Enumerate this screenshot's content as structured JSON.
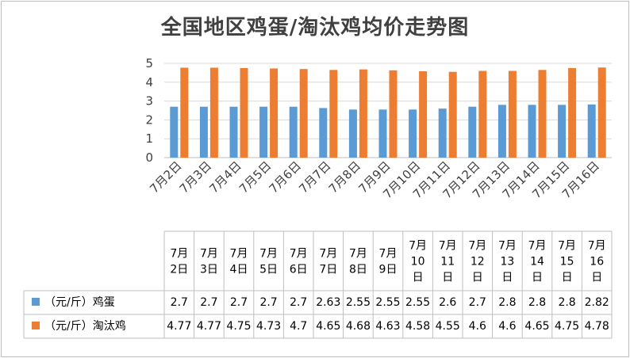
{
  "chart_data": {
    "type": "bar",
    "title": "全国地区鸡蛋/淘汰鸡均价走势图",
    "categories": [
      "7月2日",
      "7月3日",
      "7月4日",
      "7月5日",
      "7月6日",
      "7月7日",
      "7月8日",
      "7月9日",
      "7月10日",
      "7月11日",
      "7月12日",
      "7月13日",
      "7月14日",
      "7月15日",
      "7月16日"
    ],
    "table_headers": [
      [
        "7月",
        "2日"
      ],
      [
        "7月",
        "3日"
      ],
      [
        "7月",
        "4日"
      ],
      [
        "7月",
        "5日"
      ],
      [
        "7月",
        "6日"
      ],
      [
        "7月",
        "7日"
      ],
      [
        "7月",
        "8日"
      ],
      [
        "7月",
        "9日"
      ],
      [
        "7月",
        "10",
        "日"
      ],
      [
        "7月",
        "11",
        "日"
      ],
      [
        "7月",
        "12",
        "日"
      ],
      [
        "7月",
        "13",
        "日"
      ],
      [
        "7月",
        "14",
        "日"
      ],
      [
        "7月",
        "15",
        "日"
      ],
      [
        "7月",
        "16",
        "日"
      ]
    ],
    "series": [
      {
        "name": "（元/斤）鸡蛋",
        "color": "#5B9BD5",
        "values": [
          2.7,
          2.7,
          2.7,
          2.7,
          2.7,
          2.63,
          2.55,
          2.55,
          2.55,
          2.6,
          2.7,
          2.8,
          2.8,
          2.8,
          2.82
        ]
      },
      {
        "name": "（元/斤）淘汰鸡",
        "color": "#ED7D31",
        "values": [
          4.77,
          4.77,
          4.75,
          4.73,
          4.7,
          4.65,
          4.68,
          4.63,
          4.58,
          4.55,
          4.6,
          4.6,
          4.65,
          4.75,
          4.78
        ]
      }
    ],
    "y_ticks": [
      "0",
      "1",
      "2",
      "3",
      "4",
      "5"
    ],
    "ylim": [
      0,
      5
    ],
    "grid": true,
    "legend": "data-table"
  }
}
